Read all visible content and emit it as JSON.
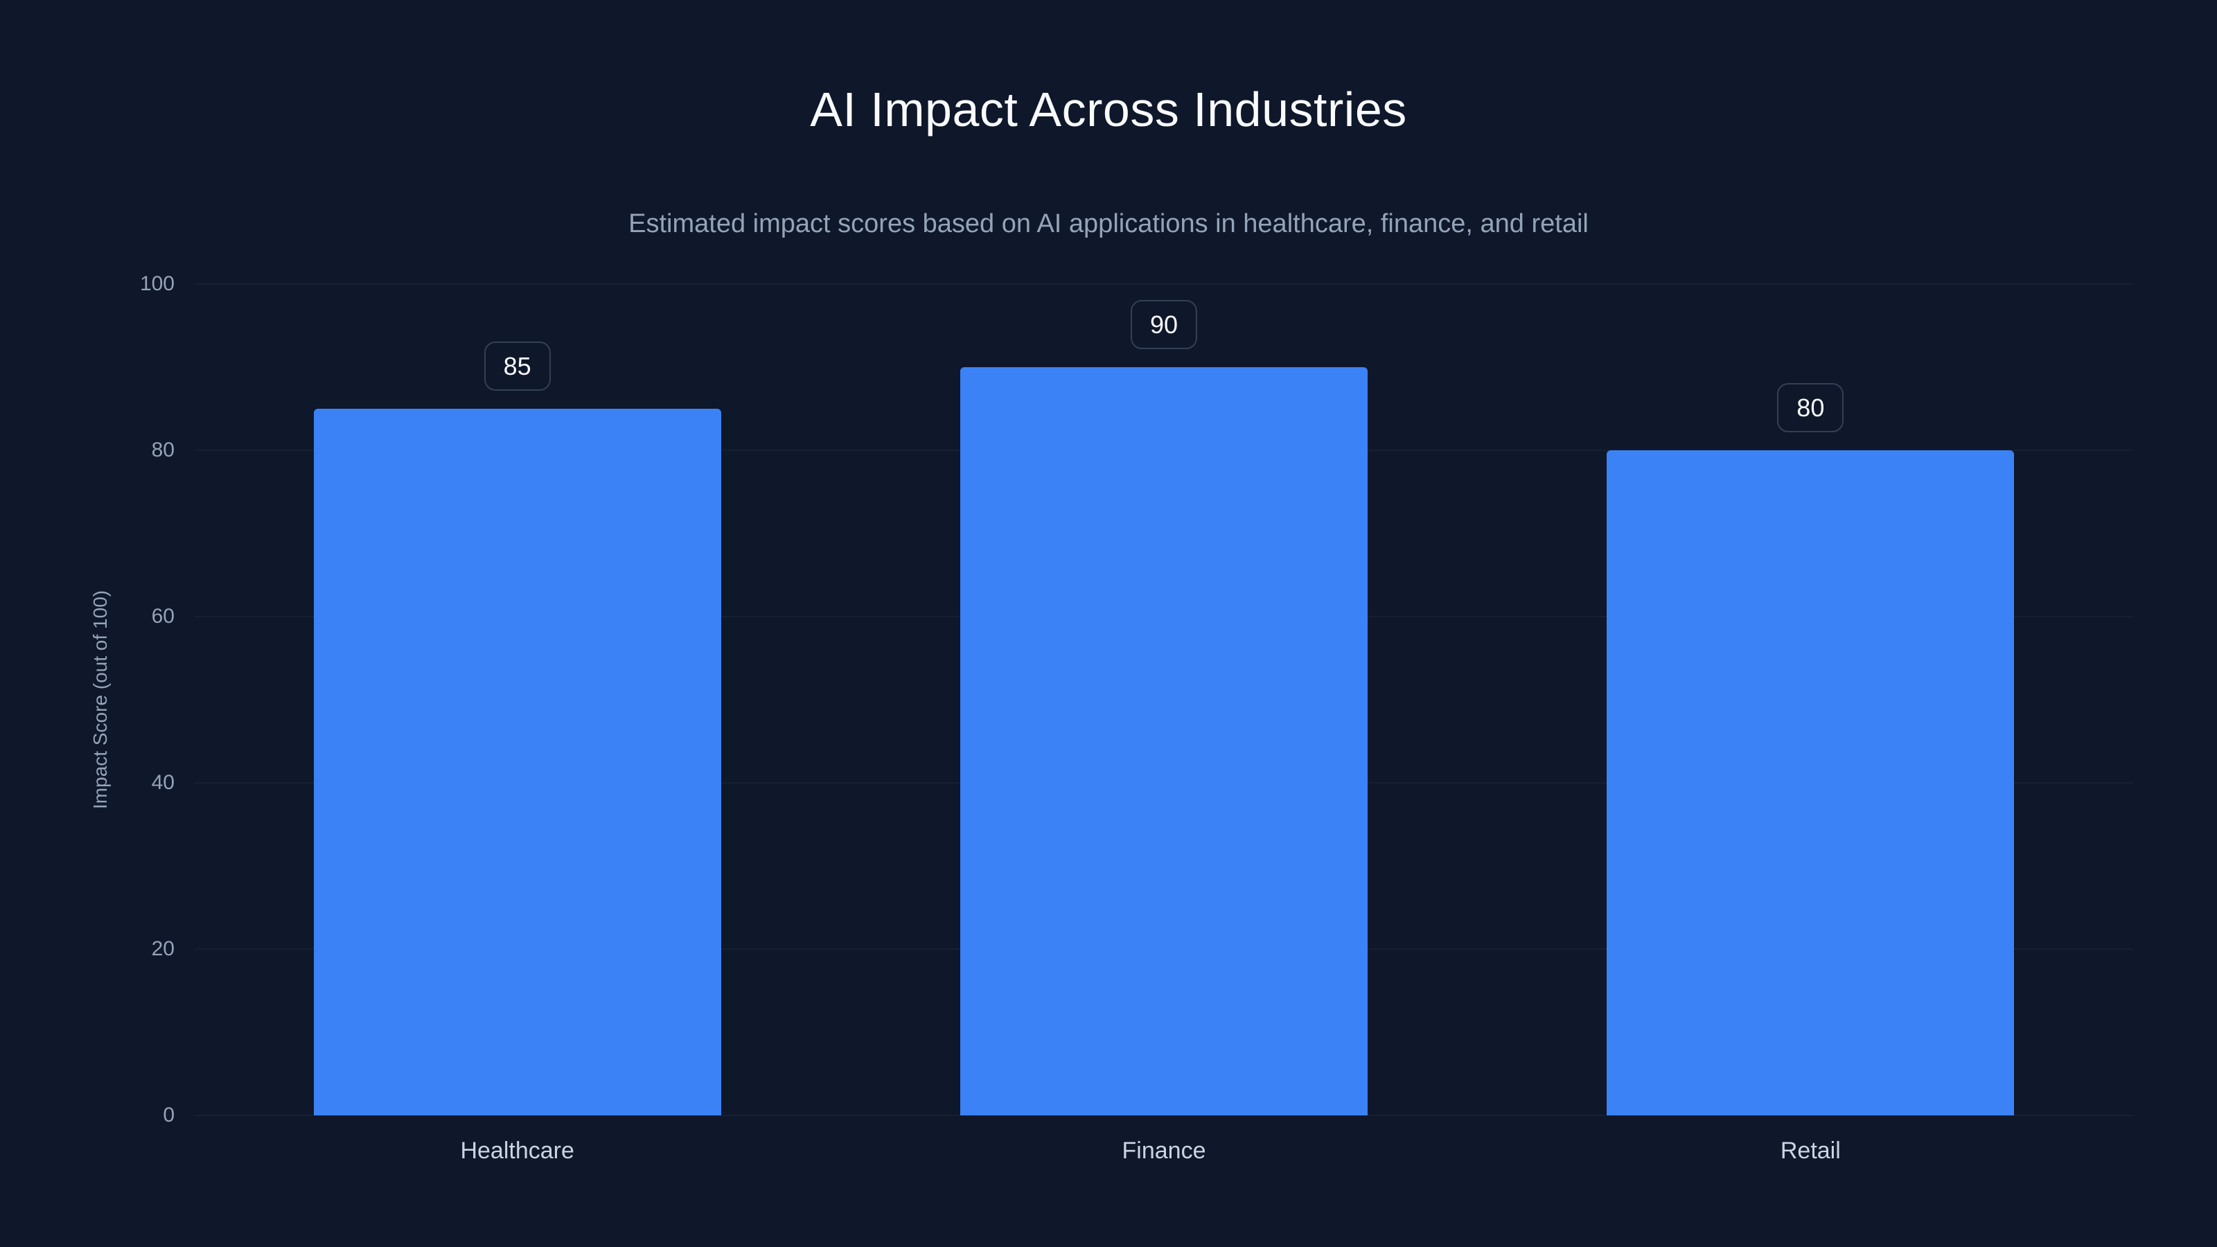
{
  "header": {
    "title": "AI Impact Across Industries",
    "subtitle": "Estimated impact scores based on AI applications in healthcare, finance, and retail"
  },
  "chart_data": {
    "type": "bar",
    "title": "AI Impact Across Industries",
    "subtitle": "Estimated impact scores based on AI applications in healthcare, finance, and retail",
    "categories": [
      "Healthcare",
      "Finance",
      "Retail"
    ],
    "values": [
      85,
      90,
      80
    ],
    "value_labels": [
      "85",
      "90",
      "80"
    ],
    "xlabel": "",
    "ylabel": "Impact Score (out of 100)",
    "ylim": [
      0,
      100
    ],
    "yticks": [
      0,
      20,
      40,
      60,
      80,
      100
    ],
    "grid": true,
    "legend": false
  },
  "colors": {
    "background": "#0f172a",
    "bar": "#3b82f6",
    "grid": "#1e293b",
    "title": "#f8fafc",
    "muted": "#94a3b8",
    "xlabel": "#cbd5e1",
    "badge-border": "#334155",
    "badge-bg": "#0f172a",
    "badge-text": "#f8fafc"
  }
}
